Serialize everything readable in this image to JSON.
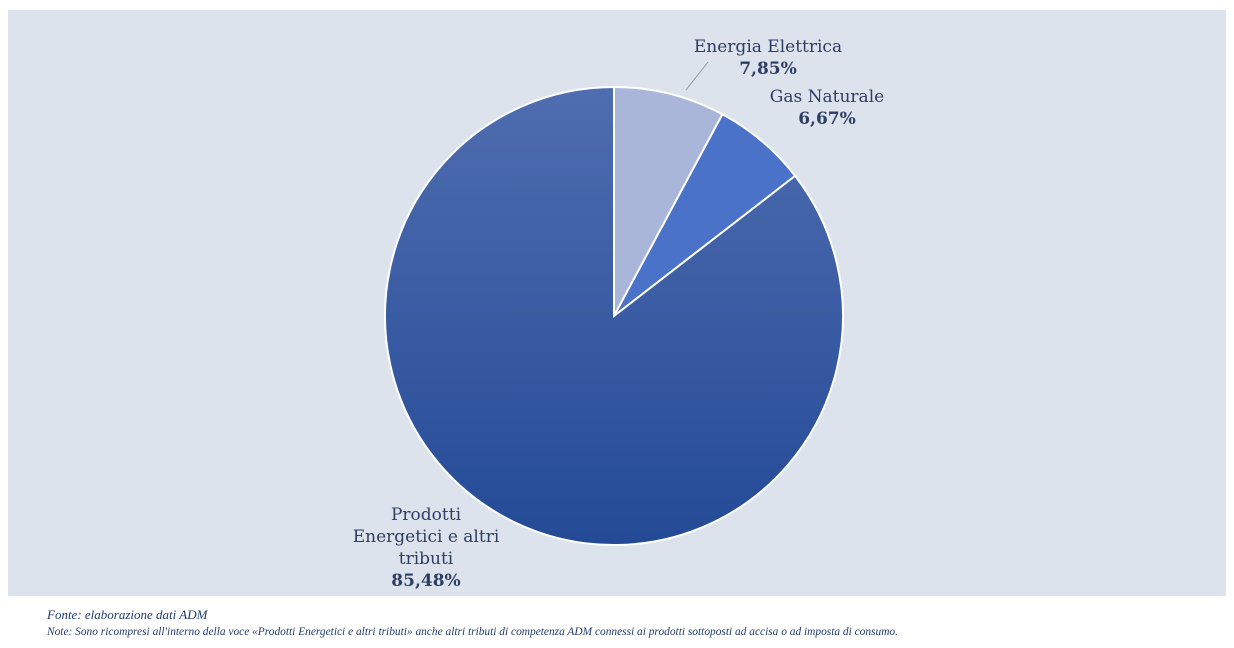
{
  "chart_data": {
    "type": "pie",
    "slices": [
      {
        "label": "Energia Elettrica",
        "value": 7.85,
        "value_label": "7,85%",
        "color": "#aab6d9",
        "label_lines": [
          "Energia Elettrica"
        ]
      },
      {
        "label": "Gas Naturale",
        "value": 6.67,
        "value_label": "6,67%",
        "color": "#4a72c8",
        "label_lines": [
          "Gas Naturale"
        ]
      },
      {
        "label": "Prodotti Energetici e altri tributi",
        "value": 85.48,
        "value_label": "85,48%",
        "color": "#2f53a0",
        "label_lines": [
          "Prodotti",
          "Energetici e altri",
          "tributi"
        ]
      }
    ]
  },
  "footer": {
    "source": "Fonte: elaborazione dati ADM",
    "note": "Note: Sono ricompresi all'interno della voce «Prodotti Energetici e altri tributi» anche altri tributi di competenza ADM connessi ai prodotti sottoposti ad accisa o ad imposta di consumo."
  }
}
